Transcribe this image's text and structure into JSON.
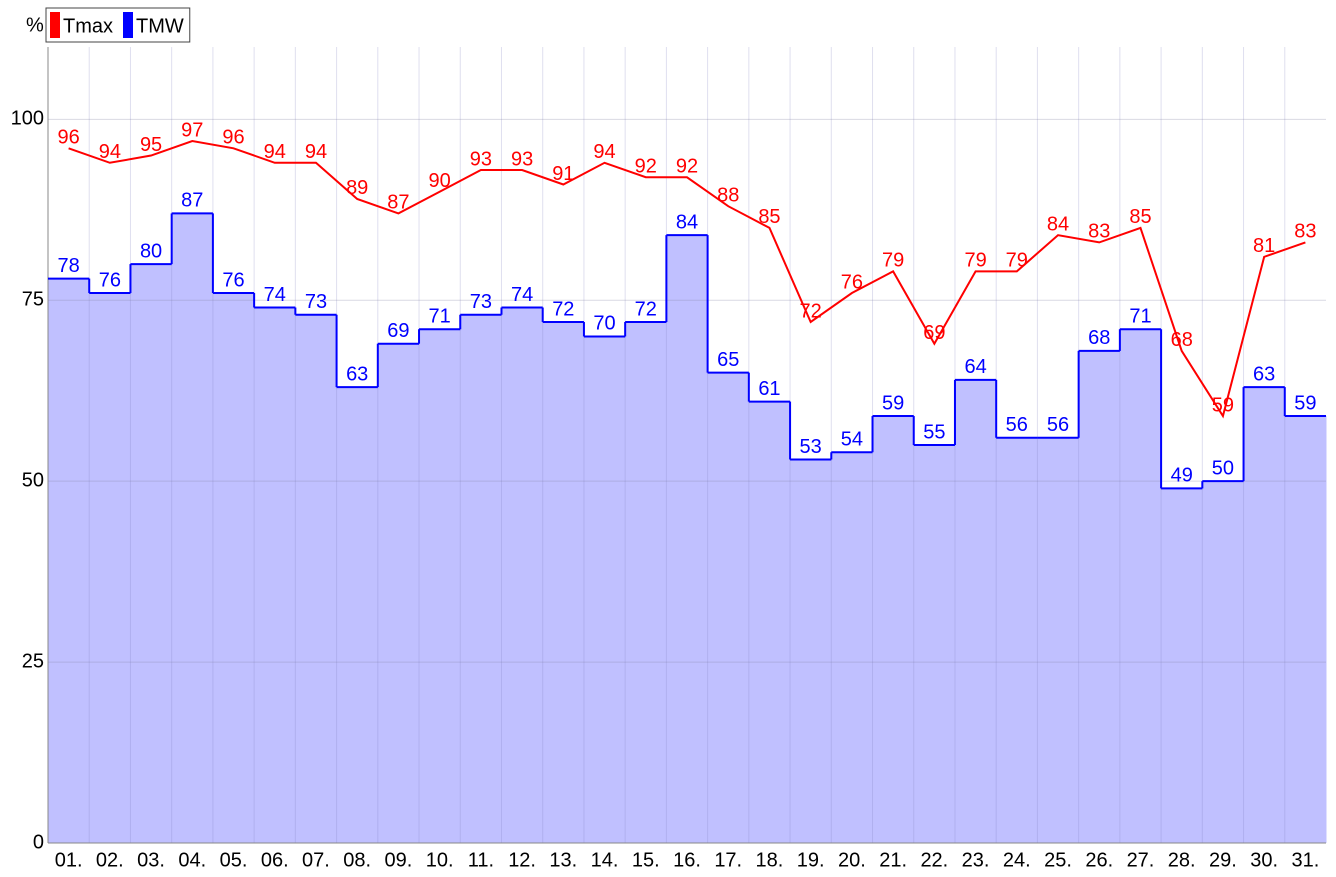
{
  "chart_data": {
    "type": "line",
    "y_unit": "%",
    "categories": [
      "01.",
      "02.",
      "03.",
      "04.",
      "05.",
      "06.",
      "07.",
      "08.",
      "09.",
      "10.",
      "11.",
      "12.",
      "13.",
      "14.",
      "15.",
      "16.",
      "17.",
      "18.",
      "19.",
      "20.",
      "21.",
      "22.",
      "23.",
      "24.",
      "25.",
      "26.",
      "27.",
      "28.",
      "29.",
      "30.",
      "31."
    ],
    "series": [
      {
        "name": "Tmax",
        "color": "#ff0000",
        "style": "line",
        "values": [
          96,
          94,
          95,
          97,
          96,
          94,
          94,
          89,
          87,
          90,
          93,
          93,
          91,
          94,
          92,
          92,
          88,
          85,
          72,
          76,
          79,
          69,
          79,
          79,
          84,
          83,
          85,
          68,
          59,
          81,
          83
        ]
      },
      {
        "name": "TMW",
        "color": "#0000ff",
        "fill": "#c0c0ff",
        "style": "step",
        "values": [
          78,
          76,
          80,
          87,
          76,
          74,
          73,
          63,
          69,
          71,
          73,
          74,
          72,
          70,
          72,
          84,
          65,
          61,
          53,
          54,
          59,
          55,
          64,
          56,
          56,
          68,
          71,
          49,
          50,
          63,
          59
        ]
      }
    ],
    "ylim": [
      0,
      110
    ],
    "yticks": [
      0,
      25,
      50,
      75,
      100
    ],
    "grid": true,
    "legend": "top-left"
  }
}
